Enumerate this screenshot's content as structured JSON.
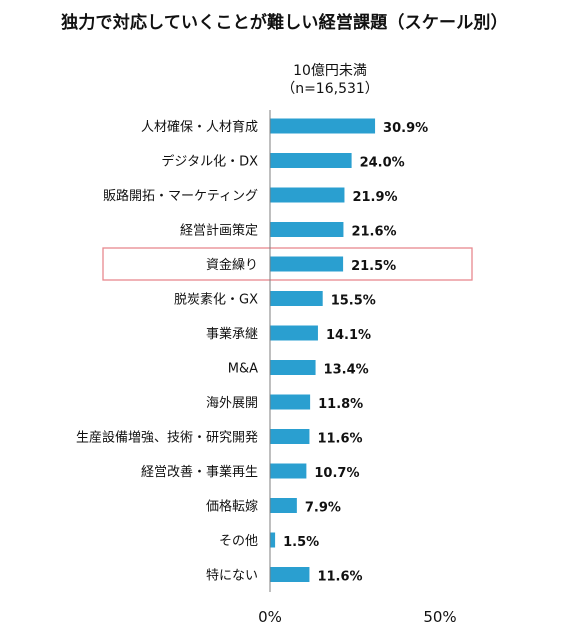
{
  "header": {
    "title": "独力で対応していくことが難しい経営課題（スケール別）",
    "subtitle_line1": "10億円未満",
    "subtitle_line2": "（n=16,531）"
  },
  "colors": {
    "bar": "#2a9fd0",
    "axis": "#7f7f7f",
    "highlight": "#e8898f"
  },
  "chart_data": {
    "type": "bar",
    "orientation": "horizontal",
    "title": "独力で対応していくことが難しい経営課題（スケール別）",
    "categories": [
      "人材確保・人材育成",
      "デジタル化・DX",
      "販路開拓・マーケティング",
      "経営計画策定",
      "資金繰り",
      "脱炭素化・GX",
      "事業承継",
      "M&A",
      "海外展開",
      "生産設備増強、技術・研究開発",
      "経営改善・事業再生",
      "価格転嫁",
      "その他",
      "特にない"
    ],
    "series": [
      {
        "name": "10億円未満（n=16,531）",
        "values": [
          30.9,
          24.0,
          21.9,
          21.6,
          21.5,
          15.5,
          14.1,
          13.4,
          11.8,
          11.6,
          10.7,
          7.9,
          1.5,
          11.6
        ]
      }
    ],
    "value_labels": [
      "30.9%",
      "24.0%",
      "21.9%",
      "21.6%",
      "21.5%",
      "15.5%",
      "14.1%",
      "13.4%",
      "11.8%",
      "11.6%",
      "10.7%",
      "7.9%",
      "1.5%",
      "11.6%"
    ],
    "xlim": [
      0,
      50
    ],
    "xticks": [
      "0%",
      "50%"
    ],
    "highlighted_category": "資金繰り",
    "grid": false,
    "legend": "none"
  }
}
